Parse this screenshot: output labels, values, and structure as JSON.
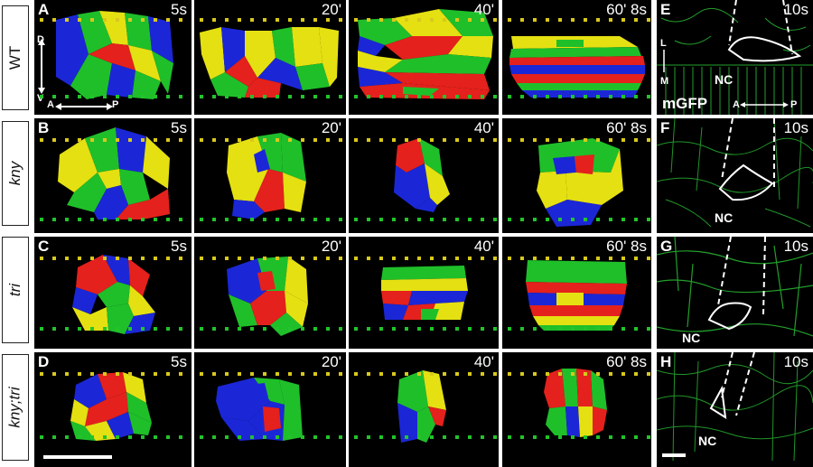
{
  "rows": [
    {
      "label": "WT",
      "italic": false
    },
    {
      "label": "kny",
      "italic": true
    },
    {
      "label": "tri",
      "italic": true
    },
    {
      "label": "kny;tri",
      "italic": true
    }
  ],
  "panel_letters": [
    "A",
    "B",
    "C",
    "D",
    "E",
    "F",
    "G",
    "H"
  ],
  "timepoints": [
    "5s",
    "20'",
    "40'",
    "60' 8s"
  ],
  "gfp_time": "10s",
  "nc_label": "NC",
  "mgfp_label": "mGFP",
  "axes": {
    "d": "D",
    "v": "V",
    "a": "A",
    "p": "P",
    "l": "L",
    "m": "M"
  },
  "colors": {
    "red": "#e4211c",
    "green": "#1fbf2a",
    "blue": "#1b27d6",
    "yellow": "#e5e012",
    "marker_yellow": "#d8c91a",
    "marker_green": "#22c42a",
    "gfp": "#2fd43a"
  }
}
